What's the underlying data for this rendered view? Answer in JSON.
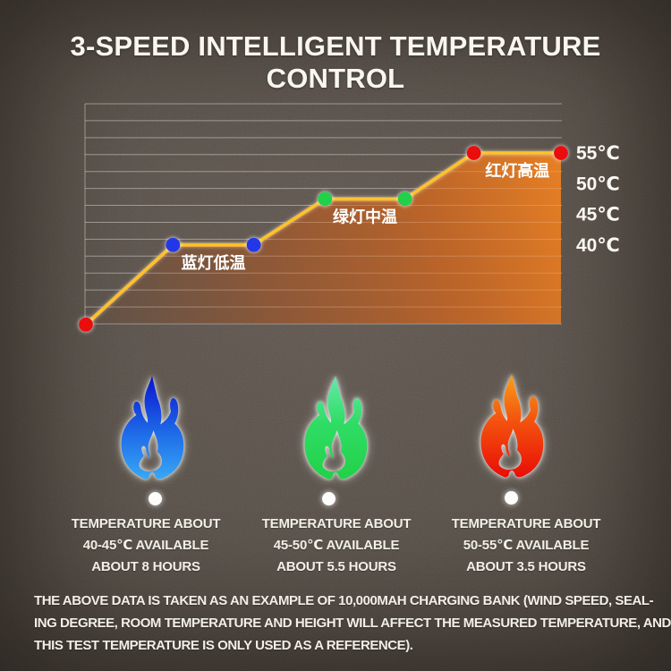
{
  "title": "3-SPEED INTELLIGENT TEMPERATURE CONTROL",
  "chart_data": {
    "type": "line",
    "title": "",
    "grid": "horizontal-lines",
    "legend": "none",
    "x_axis": {
      "tick_labels": []
    },
    "y_axis": {
      "side": "right",
      "unit": "℃",
      "approx_range_c": [
        27,
        63
      ],
      "ticks": [
        {
          "label": "55℃",
          "value": 55
        },
        {
          "label": "50℃",
          "value": 50
        },
        {
          "label": "45℃",
          "value": 45
        },
        {
          "label": "40℃",
          "value": 40
        }
      ]
    },
    "points": [
      {
        "x": 0,
        "temp_c": 27,
        "color": "red"
      },
      {
        "x": 1.1,
        "temp_c": 40,
        "color": "blue"
      },
      {
        "x": 2.12,
        "temp_c": 40,
        "color": "blue"
      },
      {
        "x": 3.02,
        "temp_c": 47.5,
        "color": "green"
      },
      {
        "x": 4.03,
        "temp_c": 47.5,
        "color": "green"
      },
      {
        "x": 4.9,
        "temp_c": 55,
        "color": "red"
      },
      {
        "x": 6,
        "temp_c": 55,
        "color": "red"
      }
    ],
    "annotations": [
      {
        "text": "蓝灯低温",
        "between": [
          1,
          2
        ]
      },
      {
        "text": "绿灯中温",
        "between": [
          3,
          4
        ]
      },
      {
        "text": "红灯高温",
        "between": [
          5,
          6
        ]
      }
    ]
  },
  "colors": {
    "background": "#575049",
    "line": "#ffc41e",
    "area_fill": "#e87a20",
    "dots": {
      "red": "#ea1108",
      "blue": "#2038e8",
      "green": "#21d148"
    },
    "flames": {
      "blue": [
        "#0a14cf",
        "#38a8f5"
      ],
      "green": [
        "#63eaaa",
        "#22d147"
      ],
      "red": [
        "#f9a019",
        "#e90d06"
      ]
    }
  },
  "columns": [
    {
      "flame": "blue-flame-icon",
      "lines": [
        "TEMPERATURE ABOUT",
        "40-45℃ AVAILABLE",
        "ABOUT 8 HOURS"
      ]
    },
    {
      "flame": "green-flame-icon",
      "lines": [
        "TEMPERATURE ABOUT",
        "45-50℃ AVAILABLE",
        "ABOUT 5.5 HOURS"
      ]
    },
    {
      "flame": "red-flame-icon",
      "lines": [
        "TEMPERATURE ABOUT",
        "50-55℃ AVAILABLE",
        "ABOUT 3.5 HOURS"
      ]
    }
  ],
  "footer": {
    "lines": [
      "THE ABOVE DATA IS TAKEN AS AN EXAMPLE OF 10,000MAH CHARGING BANK (WIND SPEED, SEAL-",
      "ING DEGREE, ROOM TEMPERATURE AND HEIGHT WILL AFFECT THE MEASURED TEMPERATURE, AND",
      "THIS TEST TEMPERATURE IS ONLY USED AS A REFERENCE)."
    ]
  }
}
